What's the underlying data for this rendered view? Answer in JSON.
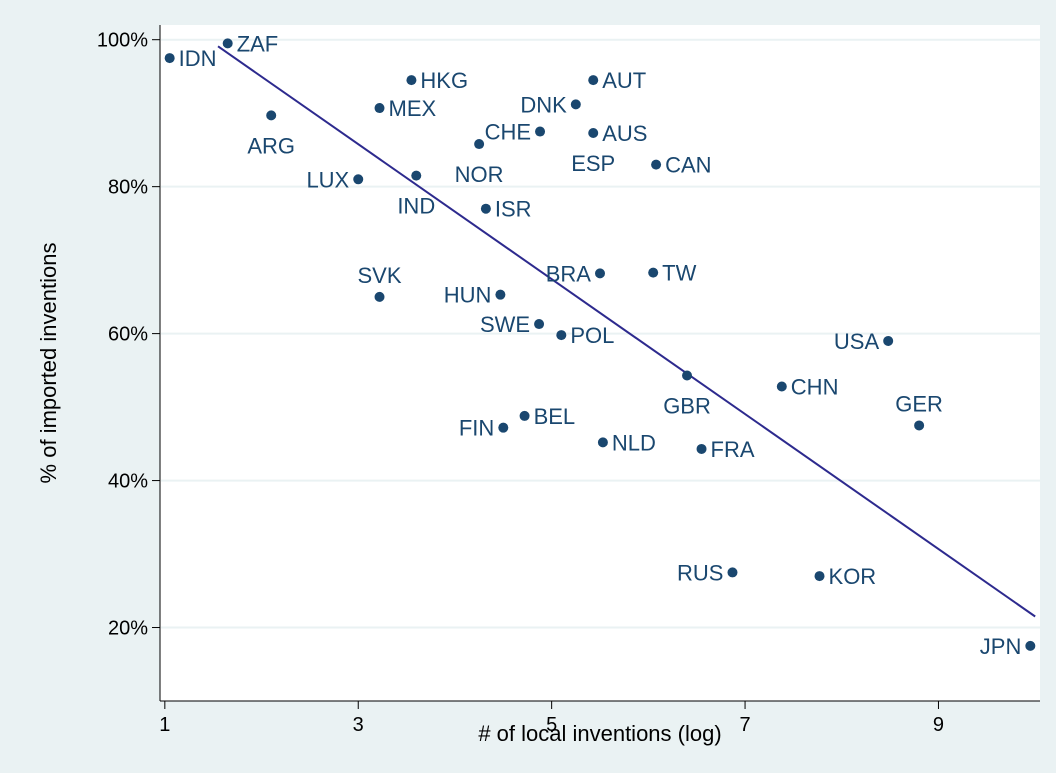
{
  "chart_data": {
    "type": "scatter",
    "title": "",
    "xlabel": "# of local inventions (log)",
    "ylabel": "% of imported inventions",
    "xlim": [
      0.95,
      10.05
    ],
    "ylim": [
      10,
      102
    ],
    "xticks": [
      1,
      3,
      5,
      7,
      9
    ],
    "yticks": [
      20,
      40,
      60,
      80,
      100
    ],
    "ytick_labels": [
      "20%",
      "40%",
      "60%",
      "80%",
      "100%"
    ],
    "grid": "horizontal",
    "legend": "none",
    "colors": {
      "outer_background": "#EAF2F3",
      "plot_background": "#FFFFFF",
      "gridline": "#EAF2F3",
      "marker": "#1A476F",
      "label": "#1A476F",
      "fit_line": "#2D2A8E",
      "axis": "#000000"
    },
    "points": [
      {
        "label": "IDN",
        "x": 1.05,
        "y": 97.5,
        "pos": "right"
      },
      {
        "label": "ZAF",
        "x": 1.65,
        "y": 99.5,
        "pos": "right"
      },
      {
        "label": "ARG",
        "x": 2.1,
        "y": 89.7,
        "pos": "below"
      },
      {
        "label": "LUX",
        "x": 3.0,
        "y": 81.0,
        "pos": "left"
      },
      {
        "label": "HKG",
        "x": 3.55,
        "y": 94.5,
        "pos": "right"
      },
      {
        "label": "MEX",
        "x": 3.22,
        "y": 90.7,
        "pos": "right"
      },
      {
        "label": "IND",
        "x": 3.6,
        "y": 81.5,
        "pos": "below"
      },
      {
        "label": "NOR",
        "x": 4.25,
        "y": 85.8,
        "pos": "below"
      },
      {
        "label": "ISR",
        "x": 4.32,
        "y": 77.0,
        "pos": "right"
      },
      {
        "label": "CHE",
        "x": 4.88,
        "y": 87.5,
        "pos": "left"
      },
      {
        "label": "DNK",
        "x": 5.25,
        "y": 91.2,
        "pos": "left"
      },
      {
        "label": "AUT",
        "x": 5.43,
        "y": 94.5,
        "pos": "right"
      },
      {
        "label": "AUS",
        "x": 5.43,
        "y": 87.3,
        "pos": "right"
      },
      {
        "label": "ESP",
        "x": 5.43,
        "y": 87.3,
        "pos": "below"
      },
      {
        "label": "CAN",
        "x": 6.08,
        "y": 83.0,
        "pos": "right"
      },
      {
        "label": "SVK",
        "x": 3.22,
        "y": 65.0,
        "pos": "above"
      },
      {
        "label": "HUN",
        "x": 4.47,
        "y": 65.3,
        "pos": "left"
      },
      {
        "label": "BRA",
        "x": 5.5,
        "y": 68.2,
        "pos": "left"
      },
      {
        "label": "TW",
        "x": 6.05,
        "y": 68.3,
        "pos": "right"
      },
      {
        "label": "SWE",
        "x": 4.87,
        "y": 61.3,
        "pos": "left"
      },
      {
        "label": "POL",
        "x": 5.1,
        "y": 59.8,
        "pos": "right"
      },
      {
        "label": "USA",
        "x": 8.48,
        "y": 59.0,
        "pos": "left"
      },
      {
        "label": "GBR",
        "x": 6.4,
        "y": 54.3,
        "pos": "below"
      },
      {
        "label": "CHN",
        "x": 7.38,
        "y": 52.8,
        "pos": "right"
      },
      {
        "label": "GER",
        "x": 8.8,
        "y": 47.5,
        "pos": "above"
      },
      {
        "label": "BEL",
        "x": 4.72,
        "y": 48.8,
        "pos": "right"
      },
      {
        "label": "FIN",
        "x": 4.5,
        "y": 47.2,
        "pos": "left"
      },
      {
        "label": "NLD",
        "x": 5.53,
        "y": 45.2,
        "pos": "right"
      },
      {
        "label": "FRA",
        "x": 6.55,
        "y": 44.3,
        "pos": "right"
      },
      {
        "label": "RUS",
        "x": 6.87,
        "y": 27.5,
        "pos": "left"
      },
      {
        "label": "KOR",
        "x": 7.77,
        "y": 27.0,
        "pos": "right"
      },
      {
        "label": "JPN",
        "x": 9.95,
        "y": 17.5,
        "pos": "left"
      }
    ],
    "fit_line": {
      "x": [
        1.55,
        10.0
      ],
      "y": [
        99.1,
        21.5
      ]
    }
  }
}
